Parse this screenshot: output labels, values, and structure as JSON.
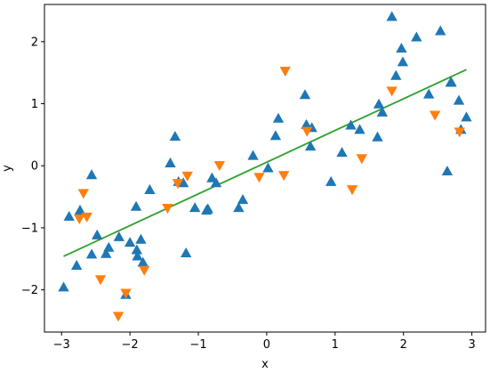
{
  "chart_data": {
    "type": "scatter",
    "xlabel": "x",
    "ylabel": "y",
    "xlim": [
      -3.25,
      3.2
    ],
    "ylim": [
      -2.68,
      2.6
    ],
    "xticks": [
      -3,
      -2,
      -1,
      0,
      1,
      2,
      3
    ],
    "yticks": [
      -2,
      -1,
      0,
      1,
      2
    ],
    "grid": false,
    "colors": {
      "series_a": "#1f77b4",
      "series_b": "#ff7f0e",
      "fit": "#2ca02c"
    },
    "series": [
      {
        "marker": "triangle-up",
        "points": [
          [
            -2.97,
            -1.96
          ],
          [
            -2.89,
            -0.82
          ],
          [
            -2.78,
            -1.61
          ],
          [
            -2.73,
            -0.72
          ],
          [
            -2.56,
            -0.15
          ],
          [
            -2.56,
            -1.43
          ],
          [
            -2.48,
            -1.12
          ],
          [
            -2.35,
            -1.42
          ],
          [
            -2.31,
            -1.32
          ],
          [
            -2.16,
            -1.15
          ],
          [
            -2.06,
            -2.08
          ],
          [
            -2.0,
            -1.24
          ],
          [
            -1.91,
            -0.66
          ],
          [
            -1.9,
            -1.36
          ],
          [
            -1.89,
            -1.46
          ],
          [
            -1.84,
            -1.19
          ],
          [
            -1.81,
            -1.56
          ],
          [
            -1.71,
            -0.39
          ],
          [
            -1.41,
            0.04
          ],
          [
            -1.34,
            0.47
          ],
          [
            -1.29,
            -0.26
          ],
          [
            -1.22,
            -0.28
          ],
          [
            -1.18,
            -1.41
          ],
          [
            -1.05,
            -0.68
          ],
          [
            -0.88,
            -0.72
          ],
          [
            -0.86,
            -0.7
          ],
          [
            -0.8,
            -0.2
          ],
          [
            -0.74,
            -0.28
          ],
          [
            -0.41,
            -0.68
          ],
          [
            -0.35,
            -0.55
          ],
          [
            -0.2,
            0.16
          ],
          [
            0.02,
            -0.04
          ],
          [
            0.13,
            0.48
          ],
          [
            0.17,
            0.76
          ],
          [
            0.56,
            1.14
          ],
          [
            0.58,
            0.66
          ],
          [
            0.64,
            0.31
          ],
          [
            0.66,
            0.61
          ],
          [
            0.94,
            -0.26
          ],
          [
            1.1,
            0.21
          ],
          [
            1.23,
            0.65
          ],
          [
            1.36,
            0.58
          ],
          [
            1.62,
            0.46
          ],
          [
            1.64,
            0.99
          ],
          [
            1.69,
            0.86
          ],
          [
            1.83,
            2.4
          ],
          [
            1.89,
            1.45
          ],
          [
            1.97,
            1.89
          ],
          [
            1.99,
            1.67
          ],
          [
            2.19,
            2.07
          ],
          [
            2.37,
            1.15
          ],
          [
            2.54,
            2.17
          ],
          [
            2.64,
            -0.09
          ],
          [
            2.69,
            1.34
          ],
          [
            2.7,
            1.34
          ],
          [
            2.81,
            1.05
          ],
          [
            2.84,
            0.58
          ],
          [
            2.92,
            0.78
          ]
        ]
      },
      {
        "marker": "triangle-down",
        "points": [
          [
            -2.74,
            -0.85
          ],
          [
            -2.68,
            -0.44
          ],
          [
            -2.63,
            -0.82
          ],
          [
            -2.43,
            -1.83
          ],
          [
            -2.17,
            -2.42
          ],
          [
            -2.06,
            -2.05
          ],
          [
            -1.79,
            -1.68
          ],
          [
            -1.45,
            -0.68
          ],
          [
            -1.3,
            -0.28
          ],
          [
            -1.16,
            -0.16
          ],
          [
            -0.69,
            0.01
          ],
          [
            -0.11,
            -0.18
          ],
          [
            0.25,
            -0.15
          ],
          [
            0.27,
            1.53
          ],
          [
            0.59,
            0.56
          ],
          [
            1.25,
            -0.38
          ],
          [
            1.39,
            0.12
          ],
          [
            1.83,
            1.21
          ],
          [
            2.46,
            0.82
          ],
          [
            2.82,
            0.55
          ]
        ]
      }
    ],
    "fit_line": {
      "x": [
        -2.97,
        2.92
      ],
      "y": [
        -1.46,
        1.55
      ]
    }
  }
}
